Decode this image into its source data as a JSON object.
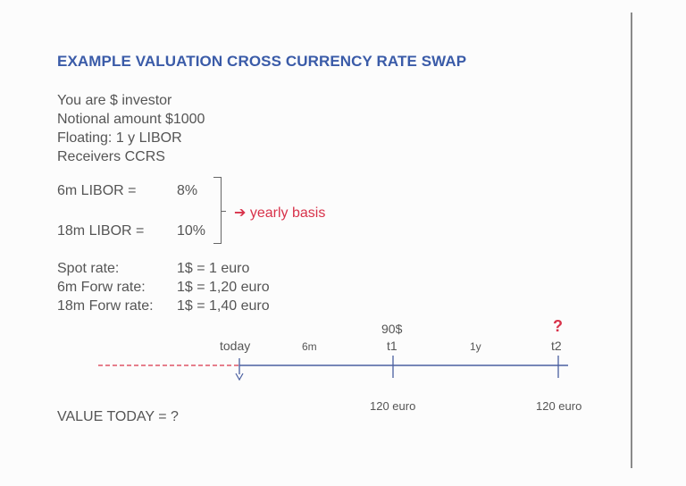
{
  "title": "EXAMPLE VALUATION CROSS CURRENCY RATE SWAP",
  "intro": [
    "You are $ investor",
    "Notional amount $1000",
    "Floating: 1 y LIBOR",
    "Receivers CCRS"
  ],
  "libor": [
    {
      "label": "6m LIBOR =",
      "value": "8%"
    },
    {
      "label": "18m LIBOR =",
      "value": "10%"
    }
  ],
  "libor_note": "yearly basis",
  "rates": [
    {
      "label": "Spot rate:",
      "value": "1$ = 1 euro"
    },
    {
      "label": "6m Forw rate:",
      "value": "1$ = 1,20 euro"
    },
    {
      "label": "18m Forw rate:",
      "value": "1$ = 1,40 euro"
    }
  ],
  "timeline": {
    "today": "today",
    "period1": "6m",
    "t1_label": "t1",
    "t1_amount": "90$",
    "period2": "1y",
    "t2_label": "t2",
    "t2_amount": "?",
    "t1_euro": "120 euro",
    "t2_euro": "120 euro",
    "line_color": "#4a5fa0",
    "dashed_color": "#d8324a"
  },
  "question": "VALUE TODAY = ?"
}
